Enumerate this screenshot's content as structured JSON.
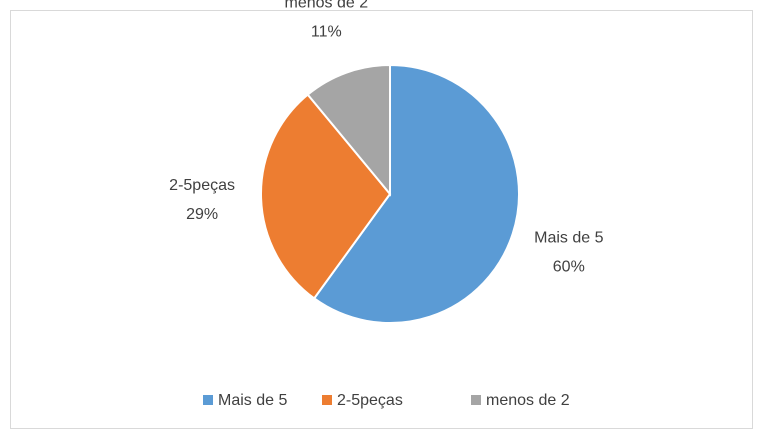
{
  "chart_data": {
    "type": "pie",
    "categories": [
      "Mais de 5",
      "2-5peças",
      "menos de 2"
    ],
    "values": [
      60,
      29,
      11
    ],
    "value_labels": [
      "60%",
      "29%",
      "11%"
    ],
    "colors": [
      "#5b9bd5",
      "#ed7d31",
      "#a5a5a5"
    ],
    "legend": "bottom"
  }
}
